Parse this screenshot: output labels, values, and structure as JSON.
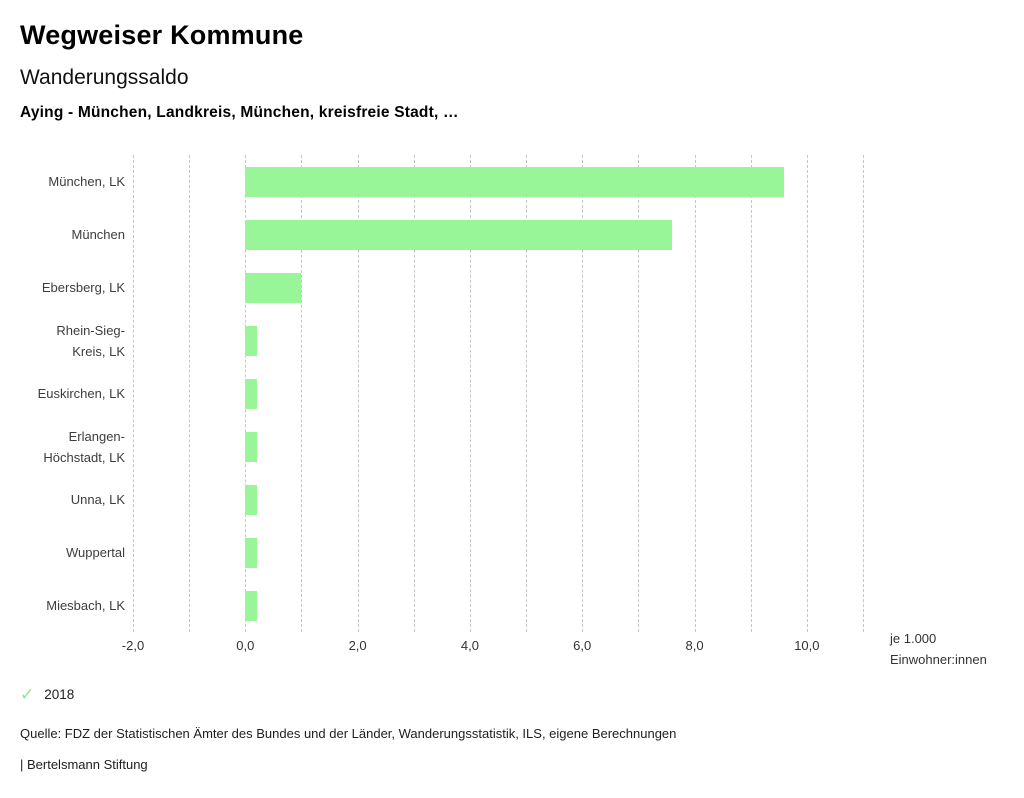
{
  "header": {
    "app_title": "Wegweiser Kommune",
    "chart_title": "Wanderungssaldo",
    "selection": "Aying - München, Landkreis, München, kreisfreie Stadt, …"
  },
  "chart_data": {
    "type": "bar",
    "orientation": "horizontal",
    "title": "Wanderungssaldo",
    "subtitle": "Aying - München, Landkreis, München, kreisfreie Stadt, …",
    "categories": [
      "München, LK",
      "München",
      "Ebersberg, LK",
      "Rhein-Sieg-\nKreis, LK",
      "Euskirchen, LK",
      "Erlangen-\nHöchstadt, LK",
      "Unna, LK",
      "Wuppertal",
      "Miesbach, LK"
    ],
    "values": [
      9.6,
      7.6,
      1.0,
      0.2,
      0.2,
      0.2,
      0.2,
      0.2,
      0.2
    ],
    "year": "2018",
    "xlabel": "je 1.000\nEinwohner:innen",
    "xlim": [
      -2,
      11
    ],
    "gridline_step": 1,
    "grid": true,
    "x_ticks": [
      {
        "value": -2,
        "label": "-2,0"
      },
      {
        "value": 0,
        "label": "0,0"
      },
      {
        "value": 2,
        "label": "2,0"
      },
      {
        "value": 4,
        "label": "4,0"
      },
      {
        "value": 6,
        "label": "6,0"
      },
      {
        "value": 8,
        "label": "8,0"
      },
      {
        "value": 10,
        "label": "10,0"
      }
    ],
    "bar_color": "#98f598",
    "gridline_color": "#c6c6c6",
    "legend_position": "bottom-left"
  },
  "legend": {
    "check_icon": "✓",
    "check_color": "#8ee88e",
    "year_label": "2018"
  },
  "footer": {
    "source": "Quelle: FDZ der Statistischen Ämter des Bundes und der Länder, Wanderungsstatistik, ILS, eigene Berechnungen",
    "branding": "| Bertelsmann Stiftung"
  }
}
